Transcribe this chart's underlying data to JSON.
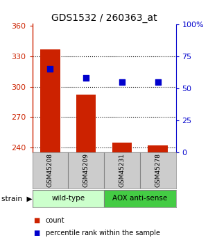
{
  "title": "GDS1532 / 260363_at",
  "samples": [
    "GSM45208",
    "GSM45209",
    "GSM45231",
    "GSM45278"
  ],
  "counts": [
    337,
    292,
    245,
    242
  ],
  "percentiles": [
    65,
    58,
    55,
    55
  ],
  "ylim_left": [
    235,
    362
  ],
  "ylim_right": [
    0,
    100
  ],
  "yticks_left": [
    240,
    270,
    300,
    330,
    360
  ],
  "yticks_right": [
    0,
    25,
    50,
    75,
    100
  ],
  "ytick_labels_right": [
    "0",
    "25",
    "50",
    "75",
    "100%"
  ],
  "bar_color": "#cc2200",
  "dot_color": "#0000cc",
  "grid_color": "#000000",
  "strain_groups": [
    {
      "label": "wild-type",
      "samples": [
        0,
        1
      ],
      "color": "#ccffcc"
    },
    {
      "label": "AOX anti-sense",
      "samples": [
        2,
        3
      ],
      "color": "#44cc44"
    }
  ],
  "legend_count": "count",
  "legend_pct": "percentile rank within the sample",
  "bar_width": 0.55,
  "dot_size": 35
}
